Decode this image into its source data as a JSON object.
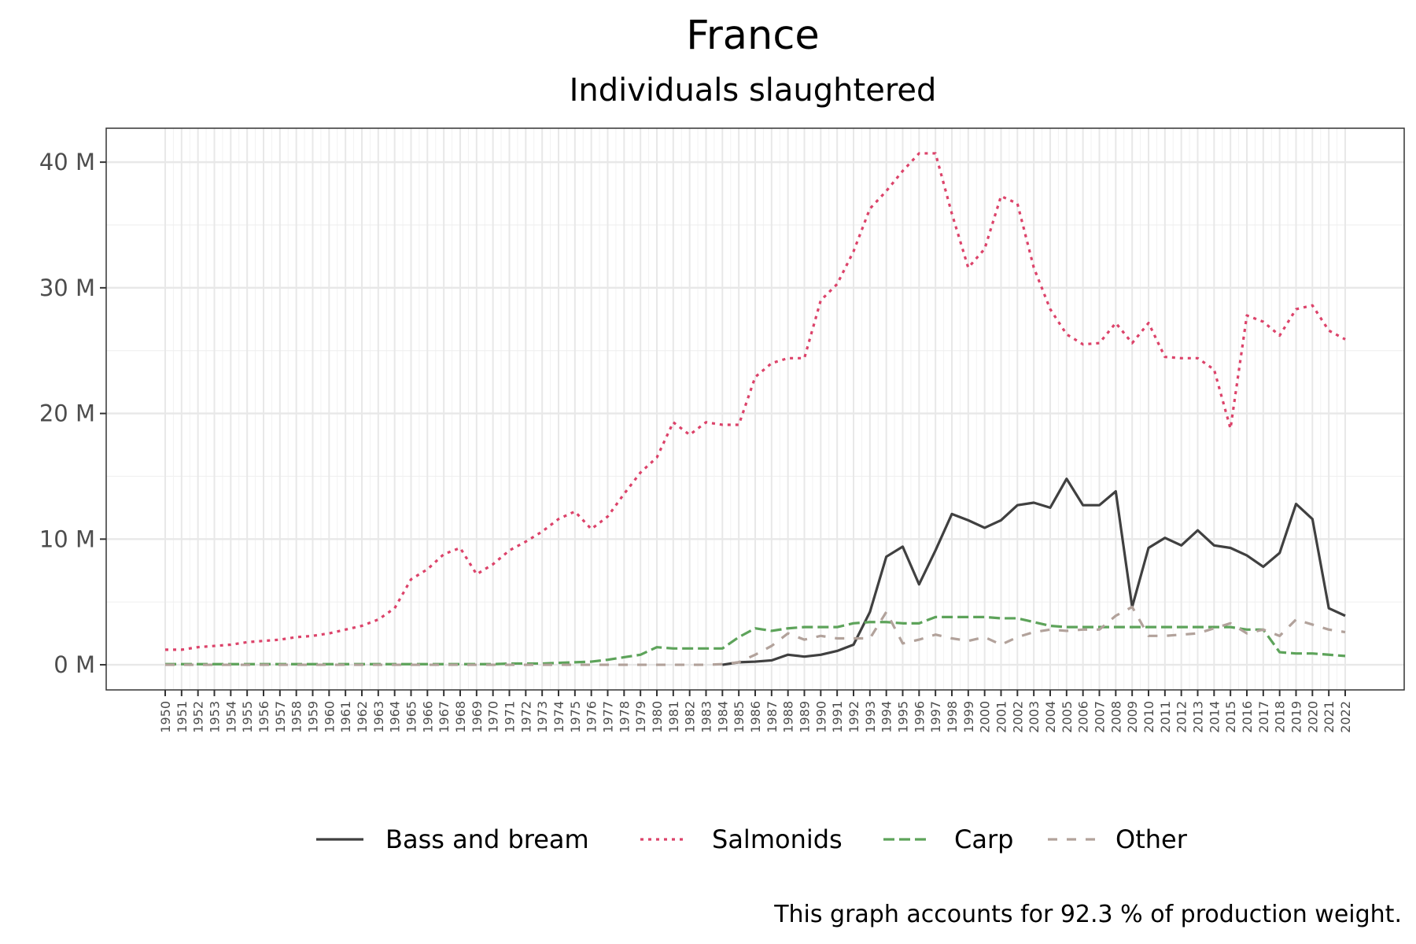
{
  "chart_data": {
    "type": "line",
    "title": "France",
    "subtitle": "Individuals slaughtered",
    "caption": "This graph accounts for 92.3 % of production weight.",
    "xlabel": "",
    "ylabel": "",
    "x": [
      1950,
      1951,
      1952,
      1953,
      1954,
      1955,
      1956,
      1957,
      1958,
      1959,
      1960,
      1961,
      1962,
      1963,
      1964,
      1965,
      1966,
      1967,
      1968,
      1969,
      1970,
      1971,
      1972,
      1973,
      1974,
      1975,
      1976,
      1977,
      1978,
      1979,
      1980,
      1981,
      1982,
      1983,
      1984,
      1985,
      1986,
      1987,
      1988,
      1989,
      1990,
      1991,
      1992,
      1993,
      1994,
      1995,
      1996,
      1997,
      1998,
      1999,
      2000,
      2001,
      2002,
      2003,
      2004,
      2005,
      2006,
      2007,
      2008,
      2009,
      2010,
      2011,
      2012,
      2013,
      2014,
      2015,
      2016,
      2017,
      2018,
      2019,
      2020,
      2021,
      2022
    ],
    "x_tick_labels": [
      "1950",
      "1951",
      "1952",
      "1953",
      "1954",
      "1955",
      "1956",
      "1957",
      "1958",
      "1959",
      "1960",
      "1961",
      "1962",
      "1963",
      "1964",
      "1965",
      "1966",
      "1967",
      "1968",
      "1969",
      "1970",
      "1971",
      "1972",
      "1973",
      "1974",
      "1975",
      "1976",
      "1977",
      "1978",
      "1979",
      "1980",
      "1981",
      "1982",
      "1983",
      "1984",
      "1985",
      "1986",
      "1987",
      "1988",
      "1989",
      "1990",
      "1991",
      "1992",
      "1993",
      "1994",
      "1995",
      "1996",
      "1997",
      "1998",
      "1999",
      "2000",
      "2001",
      "2002",
      "2003",
      "2004",
      "2005",
      "2006",
      "2007",
      "2008",
      "2009",
      "2010",
      "2011",
      "2012",
      "2013",
      "2014",
      "2015",
      "2016",
      "2017",
      "2018",
      "2019",
      "2020",
      "2021",
      "2022"
    ],
    "y_ticks": [
      0,
      10,
      20,
      30,
      40
    ],
    "y_tick_labels": [
      "0 M",
      "10 M",
      "20 M",
      "30 M",
      "40 M"
    ],
    "ylim": [
      -2,
      42.7
    ],
    "units": "M",
    "grid": true,
    "legend_position": "bottom",
    "series": [
      {
        "name": "Bass and bream",
        "color": "#404040",
        "dash": "solid",
        "start_year": 1984,
        "values": [
          null,
          null,
          null,
          null,
          null,
          null,
          null,
          null,
          null,
          null,
          null,
          null,
          null,
          null,
          null,
          null,
          null,
          null,
          null,
          null,
          null,
          null,
          null,
          null,
          null,
          null,
          null,
          null,
          null,
          null,
          null,
          null,
          null,
          null,
          0.0,
          0.2,
          0.25,
          0.35,
          0.8,
          0.65,
          0.8,
          1.1,
          1.6,
          4.2,
          8.6,
          9.4,
          6.4,
          9.1,
          12.0,
          11.5,
          10.9,
          11.5,
          12.7,
          12.9,
          12.5,
          14.8,
          12.7,
          12.7,
          13.8,
          4.6,
          9.3,
          10.1,
          9.5,
          10.7,
          9.5,
          9.3,
          8.7,
          7.8,
          8.9,
          12.8,
          11.6,
          4.5,
          3.9
        ]
      },
      {
        "name": "Salmonids",
        "color": "#dc436a",
        "dash": "dotted",
        "values": [
          1.2,
          1.2,
          1.4,
          1.5,
          1.6,
          1.8,
          1.9,
          2.0,
          2.2,
          2.3,
          2.5,
          2.8,
          3.1,
          3.6,
          4.5,
          6.8,
          7.6,
          8.8,
          9.3,
          7.2,
          8.0,
          9.1,
          9.8,
          10.6,
          11.6,
          12.2,
          10.8,
          11.8,
          13.6,
          15.3,
          16.5,
          19.3,
          18.3,
          19.3,
          19.1,
          19.1,
          22.9,
          24.0,
          24.4,
          24.4,
          29.0,
          30.3,
          32.9,
          36.3,
          37.7,
          39.3,
          40.7,
          40.7,
          35.9,
          31.6,
          33.1,
          37.3,
          36.7,
          31.6,
          28.3,
          26.3,
          25.5,
          25.6,
          27.2,
          25.6,
          27.2,
          24.5,
          24.4,
          24.4,
          23.5,
          18.8,
          27.8,
          27.3,
          26.2,
          28.3,
          28.6,
          26.6,
          25.9
        ]
      },
      {
        "name": "Carp",
        "color": "#5da35a",
        "dash": "longdash",
        "values": [
          0.05,
          0.05,
          0.05,
          0.05,
          0.05,
          0.05,
          0.05,
          0.05,
          0.05,
          0.05,
          0.05,
          0.05,
          0.05,
          0.05,
          0.05,
          0.05,
          0.05,
          0.05,
          0.05,
          0.05,
          0.05,
          0.1,
          0.1,
          0.1,
          0.15,
          0.2,
          0.25,
          0.4,
          0.6,
          0.8,
          1.4,
          1.3,
          1.3,
          1.3,
          1.3,
          2.2,
          2.9,
          2.7,
          2.9,
          3.0,
          3.0,
          3.0,
          3.3,
          3.4,
          3.4,
          3.3,
          3.3,
          3.8,
          3.8,
          3.8,
          3.8,
          3.7,
          3.7,
          3.4,
          3.1,
          3.0,
          3.0,
          3.0,
          3.0,
          3.0,
          3.0,
          3.0,
          3.0,
          3.0,
          3.0,
          3.0,
          2.8,
          2.8,
          1.0,
          0.9,
          0.9,
          0.8,
          0.7
        ]
      },
      {
        "name": "Other",
        "color": "#b2a29b",
        "dash": "dashed",
        "values": [
          0.0,
          0.0,
          0.0,
          0.0,
          0.0,
          0.0,
          0.0,
          0.0,
          0.0,
          0.0,
          0.0,
          0.0,
          0.0,
          0.0,
          0.0,
          0.0,
          0.0,
          0.0,
          0.0,
          0.0,
          0.0,
          0.0,
          0.0,
          0.0,
          0.0,
          0.0,
          0.0,
          0.0,
          0.0,
          0.0,
          0.0,
          0.0,
          0.0,
          0.0,
          0.05,
          0.2,
          0.8,
          1.5,
          2.5,
          2.0,
          2.3,
          2.1,
          2.1,
          2.1,
          4.2,
          1.7,
          2.0,
          2.4,
          2.1,
          1.9,
          2.2,
          1.6,
          2.2,
          2.6,
          2.8,
          2.7,
          2.8,
          2.8,
          3.9,
          4.6,
          2.3,
          2.3,
          2.4,
          2.5,
          2.9,
          3.3,
          2.5,
          2.8,
          2.3,
          3.6,
          3.2,
          2.8,
          2.6
        ]
      }
    ]
  }
}
